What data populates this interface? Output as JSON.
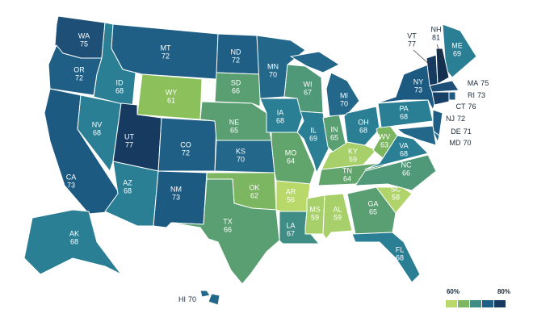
{
  "states": [
    {
      "abbr": "WA",
      "value": 75,
      "color": "#1d4f77"
    },
    {
      "abbr": "OR",
      "value": 72,
      "color": "#1f5f85"
    },
    {
      "abbr": "CA",
      "value": 73,
      "color": "#1d5a82"
    },
    {
      "abbr": "NV",
      "value": 68,
      "color": "#2a7f95"
    },
    {
      "abbr": "ID",
      "value": 68,
      "color": "#2a7f95"
    },
    {
      "abbr": "MT",
      "value": 72,
      "color": "#1f5f85"
    },
    {
      "abbr": "WY",
      "value": 61,
      "color": "#8cc05a"
    },
    {
      "abbr": "UT",
      "value": 77,
      "color": "#163a60"
    },
    {
      "abbr": "AZ",
      "value": 68,
      "color": "#2a7f95"
    },
    {
      "abbr": "CO",
      "value": 72,
      "color": "#1f5f85"
    },
    {
      "abbr": "NM",
      "value": 73,
      "color": "#1d5a82"
    },
    {
      "abbr": "ND",
      "value": 72,
      "color": "#1f5f85"
    },
    {
      "abbr": "SD",
      "value": 66,
      "color": "#5a9f72"
    },
    {
      "abbr": "NE",
      "value": 65,
      "color": "#5a9f72"
    },
    {
      "abbr": "KS",
      "value": 70,
      "color": "#23678a"
    },
    {
      "abbr": "OK",
      "value": 62,
      "color": "#7cb660"
    },
    {
      "abbr": "TX",
      "value": 66,
      "color": "#5a9f72"
    },
    {
      "abbr": "MN",
      "value": 70,
      "color": "#23678a"
    },
    {
      "abbr": "IA",
      "value": 68,
      "color": "#2a7f95"
    },
    {
      "abbr": "MO",
      "value": 64,
      "color": "#62a56c"
    },
    {
      "abbr": "AR",
      "value": 56,
      "color": "#b8d86a"
    },
    {
      "abbr": "LA",
      "value": 67,
      "color": "#3f8d85"
    },
    {
      "abbr": "WI",
      "value": 67,
      "color": "#4f9878"
    },
    {
      "abbr": "IL",
      "value": 69,
      "color": "#2a7f95"
    },
    {
      "abbr": "MS",
      "value": 59,
      "color": "#a8d06a"
    },
    {
      "abbr": "AL",
      "value": 59,
      "color": "#a8d06a"
    },
    {
      "abbr": "TN",
      "value": 64,
      "color": "#62a56c"
    },
    {
      "abbr": "KY",
      "value": 59,
      "color": "#a8d06a"
    },
    {
      "abbr": "IN",
      "value": 65,
      "color": "#5a9f72"
    },
    {
      "abbr": "MI",
      "value": 70,
      "color": "#23678a"
    },
    {
      "abbr": "OH",
      "value": 68,
      "color": "#2a7f95"
    },
    {
      "abbr": "WV",
      "value": 63,
      "color": "#7cb660"
    },
    {
      "abbr": "GA",
      "value": 65,
      "color": "#5a9f72"
    },
    {
      "abbr": "FL",
      "value": 68,
      "color": "#2a7f95"
    },
    {
      "abbr": "SC",
      "value": 58,
      "color": "#b0d46a"
    },
    {
      "abbr": "NC",
      "value": 66,
      "color": "#4f9878"
    },
    {
      "abbr": "VA",
      "value": 68,
      "color": "#2a7f95"
    },
    {
      "abbr": "PA",
      "value": 68,
      "color": "#2a7f95"
    },
    {
      "abbr": "NY",
      "value": 73,
      "color": "#1d5a82"
    },
    {
      "abbr": "ME",
      "value": 69,
      "color": "#2a7f95"
    },
    {
      "abbr": "VT",
      "value": 77,
      "color": "#163a60"
    },
    {
      "abbr": "NH",
      "value": 81,
      "color": "#13304f"
    },
    {
      "abbr": "MA",
      "value": 75,
      "color": "#1d4f77"
    },
    {
      "abbr": "RI",
      "value": 73,
      "color": "#1d5a82"
    },
    {
      "abbr": "CT",
      "value": 76,
      "color": "#183f66"
    },
    {
      "abbr": "NJ",
      "value": 72,
      "color": "#1f5f85"
    },
    {
      "abbr": "DE",
      "value": 71,
      "color": "#23678a"
    },
    {
      "abbr": "MD",
      "value": 70,
      "color": "#23678a"
    },
    {
      "abbr": "AK",
      "value": 68,
      "color": "#2a7f95"
    },
    {
      "abbr": "HI",
      "value": 70,
      "color": "#23678a"
    }
  ],
  "legend": {
    "labels": [
      "60%",
      "80%"
    ],
    "colors": [
      "#b8d86a",
      "#7cb660",
      "#3f8d85",
      "#1f5f85",
      "#163a60"
    ]
  }
}
